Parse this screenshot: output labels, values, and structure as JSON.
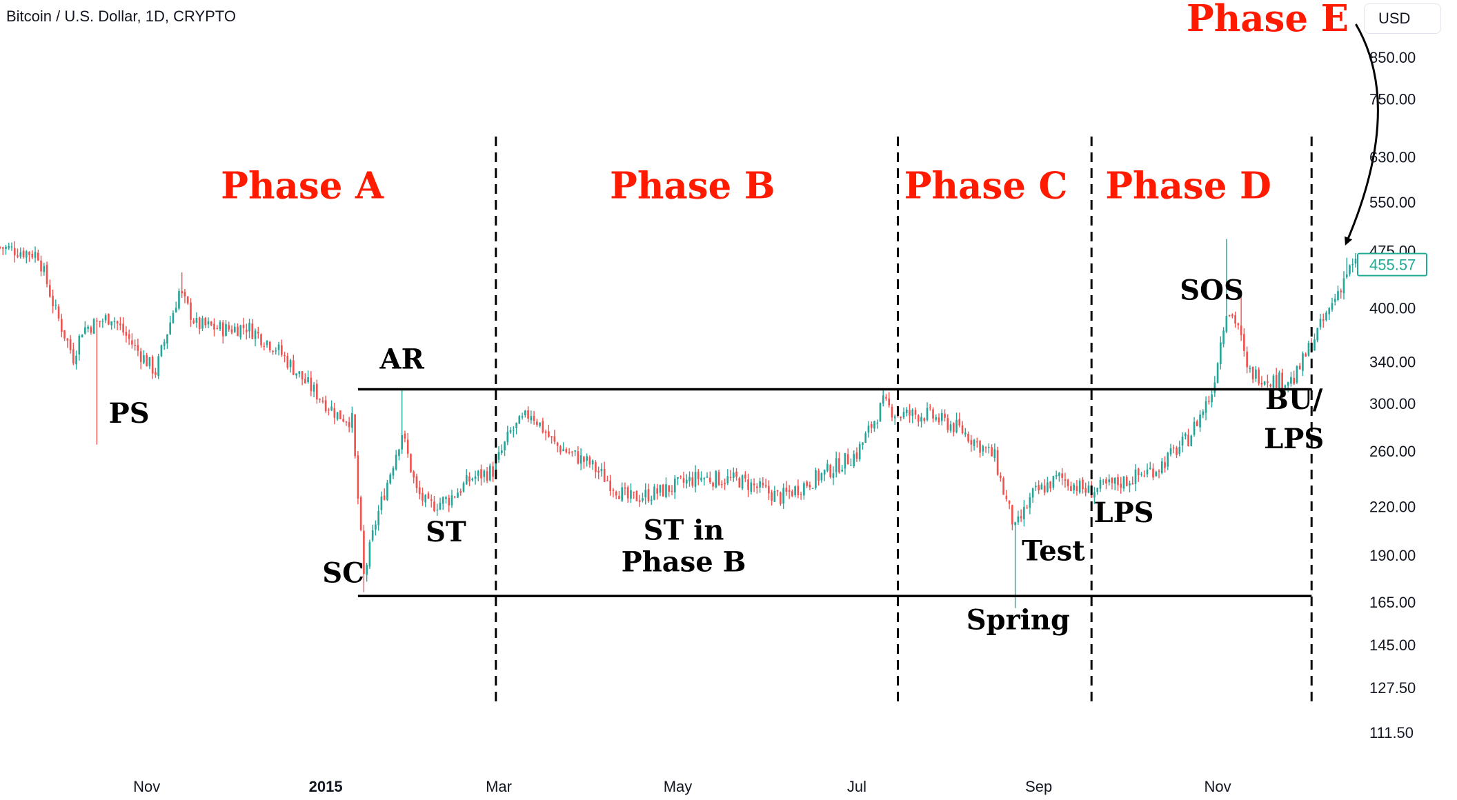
{
  "header": {
    "symbol_title": "Bitcoin / U.S. Dollar, 1D, CRYPTO",
    "currency": "USD"
  },
  "colors": {
    "up": "#26a69a",
    "down": "#ef5350",
    "phase_label": "#ff1a00",
    "annotation": "#000000",
    "last_price": "#22ab94"
  },
  "chart_data": {
    "type": "candlestick",
    "y_scale": "log",
    "ylim": [
      103,
      1010
    ],
    "y_ticks": [
      "850.00",
      "750.00",
      "630.00",
      "550.00",
      "475.00",
      "400.00",
      "340.00",
      "300.00",
      "260.00",
      "220.00",
      "190.00",
      "165.00",
      "145.00",
      "127.50",
      "111.50"
    ],
    "x_ticks": [
      "Nov",
      "2015",
      "Mar",
      "May",
      "Jul",
      "Sep",
      "Nov"
    ],
    "xlim": [
      "2014-09-12",
      "2015-12-18"
    ],
    "last_price": "455.57",
    "price_path": [
      [
        "2014-09-12",
        480
      ],
      [
        "2014-09-25",
        470
      ],
      [
        "2014-10-01",
        395
      ],
      [
        "2014-10-07",
        345
      ],
      [
        "2014-10-10",
        375
      ],
      [
        "2014-10-20",
        390
      ],
      [
        "2014-10-28",
        355
      ],
      [
        "2014-11-04",
        330
      ],
      [
        "2014-11-12",
        420
      ],
      [
        "2014-11-18",
        380
      ],
      [
        "2014-11-28",
        375
      ],
      [
        "2014-12-05",
        378
      ],
      [
        "2014-12-15",
        355
      ],
      [
        "2014-12-25",
        320
      ],
      [
        "2015-01-05",
        290
      ],
      [
        "2015-01-10",
        285
      ],
      [
        "2015-01-14",
        178
      ],
      [
        "2015-01-18",
        210
      ],
      [
        "2015-01-27",
        275
      ],
      [
        "2015-02-01",
        230
      ],
      [
        "2015-02-05",
        220
      ],
      [
        "2015-02-12",
        225
      ],
      [
        "2015-02-20",
        240
      ],
      [
        "2015-02-27",
        245
      ],
      [
        "2015-03-05",
        275
      ],
      [
        "2015-03-12",
        292
      ],
      [
        "2015-03-20",
        265
      ],
      [
        "2015-04-01",
        250
      ],
      [
        "2015-04-14",
        225
      ],
      [
        "2015-04-25",
        230
      ],
      [
        "2015-05-08",
        240
      ],
      [
        "2015-05-22",
        238
      ],
      [
        "2015-06-05",
        226
      ],
      [
        "2015-06-20",
        243
      ],
      [
        "2015-07-01",
        258
      ],
      [
        "2015-07-10",
        300
      ],
      [
        "2015-07-15",
        290
      ],
      [
        "2015-07-25",
        290
      ],
      [
        "2015-08-05",
        278
      ],
      [
        "2015-08-17",
        255
      ],
      [
        "2015-08-20",
        230
      ],
      [
        "2015-08-24",
        205
      ],
      [
        "2015-08-30",
        228
      ],
      [
        "2015-09-08",
        240
      ],
      [
        "2015-09-18",
        230
      ],
      [
        "2015-10-01",
        238
      ],
      [
        "2015-10-12",
        248
      ],
      [
        "2015-10-22",
        270
      ],
      [
        "2015-10-30",
        310
      ],
      [
        "2015-11-04",
        400
      ],
      [
        "2015-11-08",
        380
      ],
      [
        "2015-11-11",
        330
      ],
      [
        "2015-11-20",
        322
      ],
      [
        "2015-11-27",
        322
      ],
      [
        "2015-12-03",
        360
      ],
      [
        "2015-12-08",
        390
      ],
      [
        "2015-12-15",
        445
      ],
      [
        "2015-12-18",
        455
      ]
    ],
    "spikes": [
      [
        "2014-10-15",
        "low",
        265
      ],
      [
        "2014-11-13",
        "high",
        445
      ],
      [
        "2015-01-14",
        "low",
        170
      ],
      [
        "2015-01-27",
        "high",
        312
      ],
      [
        "2015-08-24",
        "low",
        162
      ],
      [
        "2015-11-04",
        "high",
        492
      ],
      [
        "2015-11-09",
        "high",
        415
      ],
      [
        "2015-12-15",
        "high",
        465
      ]
    ],
    "horizontal_lines": [
      {
        "price": 313,
        "from": "2015-01-12",
        "to": "2015-12-03"
      },
      {
        "price": 168,
        "from": "2015-01-12",
        "to": "2015-12-03"
      }
    ],
    "phase_dividers": [
      "2015-02-28",
      "2015-07-15",
      "2015-09-19",
      "2015-12-03"
    ],
    "phase_labels": [
      {
        "text": "Phase A",
        "date": "2014-12-24",
        "price": 556
      },
      {
        "text": "Phase B",
        "date": "2015-05-06",
        "price": 556
      },
      {
        "text": "Phase C",
        "date": "2015-08-14",
        "price": 556
      },
      {
        "text": "Phase D",
        "date": "2015-10-22",
        "price": 556
      },
      {
        "text": "Phase E",
        "date": "2015-11-18",
        "price": 920
      }
    ],
    "annotations": [
      {
        "text": "PS",
        "date": "2014-10-26",
        "price": 283
      },
      {
        "text": "AR",
        "date": "2015-01-27",
        "price": 333
      },
      {
        "text": "SC",
        "date": "2015-01-07",
        "price": 175
      },
      {
        "text": "ST",
        "date": "2015-02-11",
        "price": 198
      },
      {
        "text": "ST in",
        "date": "2015-05-03",
        "price": 199
      },
      {
        "text": "Phase B",
        "date": "2015-05-03",
        "price": 181
      },
      {
        "text": "Test",
        "date": "2015-09-06",
        "price": 187
      },
      {
        "text": "Spring",
        "date": "2015-08-25",
        "price": 152
      },
      {
        "text": "LPS",
        "date": "2015-09-30",
        "price": 210
      },
      {
        "text": "SOS",
        "date": "2015-10-30",
        "price": 410
      },
      {
        "text": "BU/",
        "date": "2015-11-27",
        "price": 295
      },
      {
        "text": "LPS",
        "date": "2015-11-27",
        "price": 262
      }
    ]
  }
}
